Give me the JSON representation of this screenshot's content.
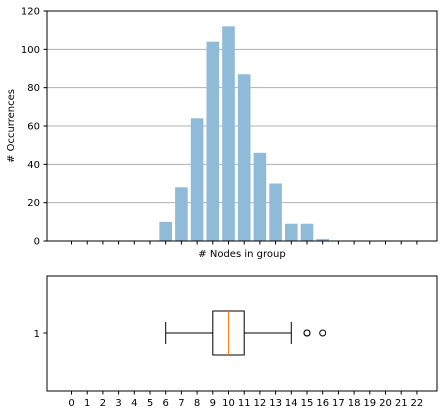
{
  "chart_data": [
    {
      "type": "bar",
      "xlabel": "# Nodes in group",
      "ylabel": "# Occurrences",
      "ylim": [
        0,
        120
      ],
      "yticks": [
        0,
        20,
        40,
        60,
        80,
        100,
        120
      ],
      "y_tick_labels": [
        "0",
        "20",
        "40",
        "60",
        "80",
        "100",
        "120"
      ],
      "grid": "horizontal",
      "bar_color": "#8fbbd9",
      "x": [
        0,
        1,
        2,
        3,
        4,
        5,
        6,
        7,
        8,
        9,
        10,
        11,
        12,
        13,
        14,
        15,
        16,
        17,
        18,
        19,
        20,
        21,
        22
      ],
      "values": [
        0,
        0,
        0,
        0,
        0,
        0,
        10,
        28,
        64,
        104,
        112,
        87,
        46,
        30,
        9,
        9,
        1,
        0,
        0,
        0,
        0,
        0,
        0
      ]
    },
    {
      "type": "box",
      "orientation": "horizontal",
      "category_label": "1",
      "whisker_low": 6,
      "q1": 9,
      "median": 10,
      "q3": 11,
      "whisker_high": 14,
      "outliers": [
        15,
        15,
        16
      ],
      "median_color": "#ff7f0e",
      "xticks": [
        0,
        1,
        2,
        3,
        4,
        5,
        6,
        7,
        8,
        9,
        10,
        11,
        12,
        13,
        14,
        15,
        16,
        17,
        18,
        19,
        20,
        21,
        22
      ],
      "x_tick_labels": [
        "0",
        "1",
        "2",
        "3",
        "4",
        "5",
        "6",
        "7",
        "8",
        "9",
        "10",
        "11",
        "12",
        "13",
        "14",
        "15",
        "16",
        "17",
        "18",
        "19",
        "20",
        "21",
        "22"
      ]
    }
  ]
}
